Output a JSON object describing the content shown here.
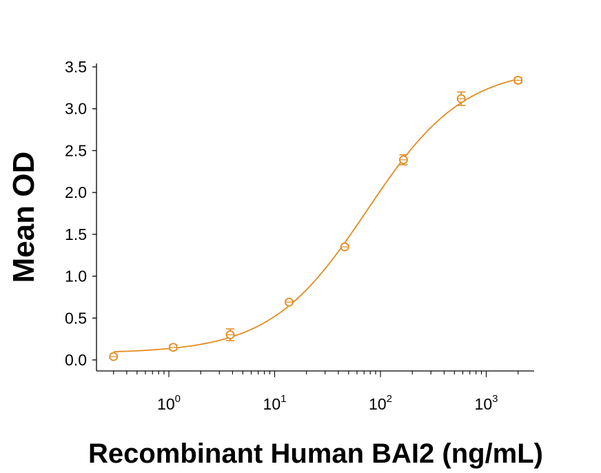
{
  "chart_data": {
    "type": "scatter",
    "title": "",
    "xlabel": "Recombinant Human BAI2 (ng/mL)",
    "ylabel": "Mean OD",
    "xscale": "log",
    "xlim": [
      0.2,
      3000
    ],
    "ylim": [
      -0.1,
      3.5
    ],
    "x_ticks": [
      {
        "value": 1,
        "base": "10",
        "exp": "0"
      },
      {
        "value": 10,
        "base": "10",
        "exp": "1"
      },
      {
        "value": 100,
        "base": "10",
        "exp": "2"
      },
      {
        "value": 1000,
        "base": "10",
        "exp": "3"
      }
    ],
    "y_ticks": [
      {
        "value": 0.0,
        "label": "0.0"
      },
      {
        "value": 0.5,
        "label": "0.5"
      },
      {
        "value": 1.0,
        "label": "1.0"
      },
      {
        "value": 1.5,
        "label": "1.5"
      },
      {
        "value": 2.0,
        "label": "2.0"
      },
      {
        "value": 2.5,
        "label": "2.5"
      },
      {
        "value": 3.0,
        "label": "3.0"
      },
      {
        "value": 3.5,
        "label": "3.5"
      }
    ],
    "grid": false,
    "color": "#e38b1f",
    "series": [
      {
        "points": [
          {
            "x": 0.3,
            "y": 0.04,
            "err": 0.02
          },
          {
            "x": 1.1,
            "y": 0.15,
            "err": 0.03
          },
          {
            "x": 3.8,
            "y": 0.3,
            "err": 0.07
          },
          {
            "x": 13.7,
            "y": 0.69,
            "err": 0.02
          },
          {
            "x": 46,
            "y": 1.35,
            "err": 0.02
          },
          {
            "x": 165,
            "y": 2.39,
            "err": 0.06
          },
          {
            "x": 580,
            "y": 3.12,
            "err": 0.08
          },
          {
            "x": 2000,
            "y": 3.34,
            "err": 0.03
          }
        ]
      }
    ],
    "fit_curve": {
      "type": "4PL",
      "bottom": 0.08,
      "top": 3.5,
      "ec50": 75,
      "hill": 0.95
    }
  }
}
